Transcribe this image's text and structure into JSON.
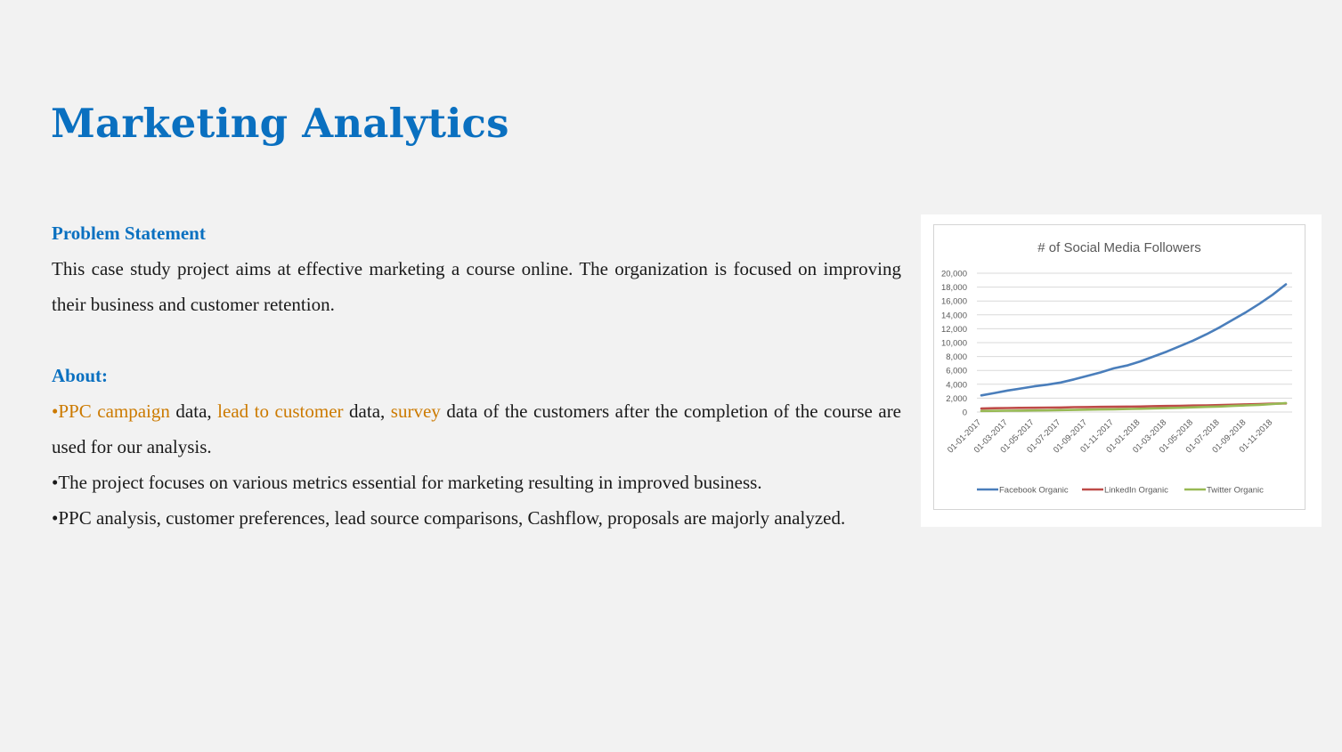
{
  "title": "Marketing Analytics",
  "problem": {
    "heading": "Problem Statement",
    "text": "This case study project aims at effective marketing a course online. The organization is focused on improving their business and customer retention."
  },
  "about": {
    "heading": "About:",
    "bullet1": {
      "b": "•",
      "hl1": "PPC campaign",
      "t1": " data, ",
      "hl2": "lead to customer",
      "t2": " data, ",
      "hl3": "survey",
      "t3": " data of the customers after the completion of the course are used for our analysis."
    },
    "bullet2": "•The project focuses on various metrics essential for marketing resulting in improved business.",
    "bullet3": "•PPC analysis, customer preferences, lead source comparisons, Cashflow, proposals are majorly analyzed."
  },
  "colors": {
    "accent": "#0a70c0",
    "highlight": "#cc7a00"
  },
  "chart_data": {
    "type": "line",
    "title": "# of Social Media Followers",
    "xlabel": "",
    "ylabel": "",
    "ylim": [
      0,
      20000
    ],
    "yticks": [
      0,
      2000,
      4000,
      6000,
      8000,
      10000,
      12000,
      14000,
      16000,
      18000,
      20000
    ],
    "ytick_labels": [
      "0",
      "2,000",
      "4,000",
      "6,000",
      "8,000",
      "10,000",
      "12,000",
      "14,000",
      "16,000",
      "18,000",
      "20,000"
    ],
    "x_tick_labels": [
      "01-01-2017",
      "01-03-2017",
      "01-05-2017",
      "01-07-2017",
      "01-09-2017",
      "01-11-2017",
      "01-01-2018",
      "01-03-2018",
      "01-05-2018",
      "01-07-2018",
      "01-09-2018",
      "01-11-2018"
    ],
    "x": [
      "01-01-2017",
      "01-02-2017",
      "01-03-2017",
      "01-04-2017",
      "01-05-2017",
      "01-06-2017",
      "01-07-2017",
      "01-08-2017",
      "01-09-2017",
      "01-10-2017",
      "01-11-2017",
      "01-12-2017",
      "01-01-2018",
      "01-02-2018",
      "01-03-2018",
      "01-04-2018",
      "01-05-2018",
      "01-06-2018",
      "01-07-2018",
      "01-08-2018",
      "01-09-2018",
      "01-10-2018",
      "01-11-2018",
      "01-12-2018"
    ],
    "grid": true,
    "legend": "bottom",
    "series": [
      {
        "name": "Facebook Organic",
        "color": "#4a7ebb",
        "values": [
          2400,
          2750,
          3100,
          3400,
          3700,
          3950,
          4250,
          4700,
          5200,
          5700,
          6300,
          6700,
          7300,
          8000,
          8700,
          9500,
          10300,
          11200,
          12200,
          13300,
          14400,
          15600,
          16900,
          18400
        ]
      },
      {
        "name": "LinkedIn Organic",
        "color": "#be4b48",
        "values": [
          500,
          550,
          580,
          600,
          620,
          640,
          660,
          700,
          720,
          740,
          760,
          780,
          800,
          850,
          870,
          900,
          930,
          960,
          1000,
          1050,
          1100,
          1150,
          1200,
          1250
        ]
      },
      {
        "name": "Twitter Organic",
        "color": "#98b954",
        "values": [
          150,
          170,
          190,
          210,
          230,
          250,
          280,
          310,
          340,
          370,
          400,
          430,
          470,
          520,
          570,
          620,
          680,
          740,
          800,
          880,
          960,
          1040,
          1150,
          1300
        ]
      }
    ]
  }
}
